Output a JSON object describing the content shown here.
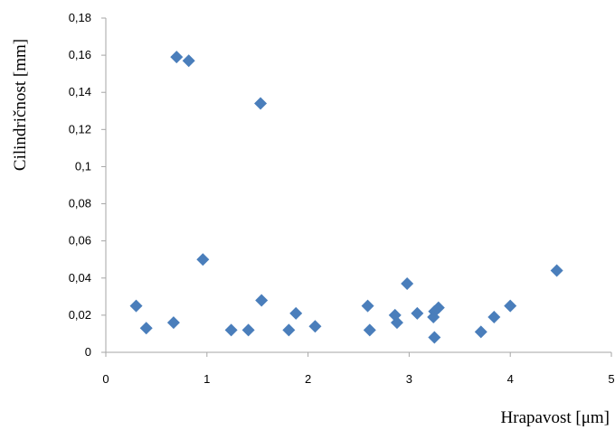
{
  "chart_data": {
    "type": "scatter",
    "xlabel": "Hrapavost [μm]",
    "ylabel": "Cilindričnost [mm]",
    "xlim": [
      0,
      5
    ],
    "ylim": [
      0,
      0.18
    ],
    "x_ticks": [
      0,
      1,
      2,
      3,
      4,
      5
    ],
    "y_ticks": [
      0,
      0.02,
      0.04,
      0.06,
      0.08,
      0.1,
      0.12,
      0.14,
      0.16,
      0.18
    ],
    "x_tick_labels": [
      "0",
      "1",
      "2",
      "3",
      "4",
      "5"
    ],
    "y_tick_labels": [
      "0",
      "0,02",
      "0,04",
      "0,06",
      "0,08",
      "0,1",
      "0,12",
      "0,14",
      "0,16",
      "0,18"
    ],
    "grid": false,
    "marker": "diamond",
    "marker_color": "#4a7ebb",
    "axis_color": "#a6a6a6",
    "series": [
      {
        "points": [
          {
            "x": 0.7,
            "y": 0.159
          },
          {
            "x": 0.82,
            "y": 0.157
          },
          {
            "x": 1.53,
            "y": 0.134
          },
          {
            "x": 0.96,
            "y": 0.05
          },
          {
            "x": 4.46,
            "y": 0.044
          },
          {
            "x": 2.98,
            "y": 0.037
          },
          {
            "x": 1.54,
            "y": 0.028
          },
          {
            "x": 0.3,
            "y": 0.025
          },
          {
            "x": 2.59,
            "y": 0.025
          },
          {
            "x": 4.0,
            "y": 0.025
          },
          {
            "x": 3.29,
            "y": 0.024
          },
          {
            "x": 3.25,
            "y": 0.022
          },
          {
            "x": 1.88,
            "y": 0.021
          },
          {
            "x": 3.08,
            "y": 0.021
          },
          {
            "x": 2.86,
            "y": 0.02
          },
          {
            "x": 3.24,
            "y": 0.019
          },
          {
            "x": 3.84,
            "y": 0.019
          },
          {
            "x": 0.67,
            "y": 0.016
          },
          {
            "x": 2.88,
            "y": 0.016
          },
          {
            "x": 2.07,
            "y": 0.014
          },
          {
            "x": 0.4,
            "y": 0.013
          },
          {
            "x": 1.24,
            "y": 0.012
          },
          {
            "x": 1.41,
            "y": 0.012
          },
          {
            "x": 1.81,
            "y": 0.012
          },
          {
            "x": 2.61,
            "y": 0.012
          },
          {
            "x": 3.71,
            "y": 0.011
          },
          {
            "x": 3.25,
            "y": 0.008
          }
        ]
      }
    ]
  }
}
